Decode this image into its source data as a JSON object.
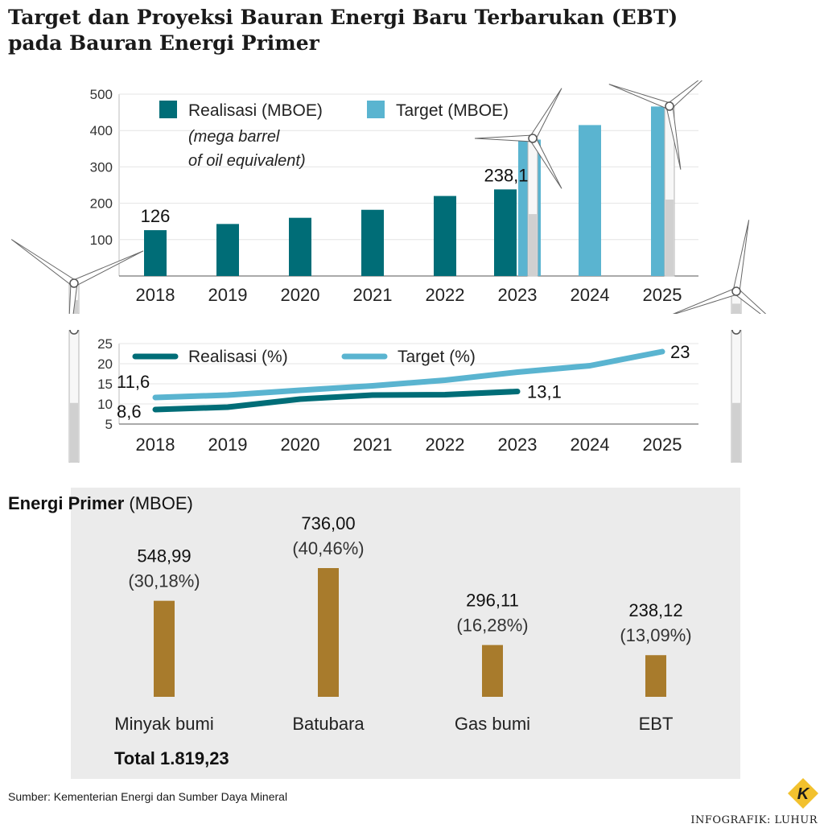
{
  "header": {
    "title_line1": "Target dan Proyeksi Bauran Energi Baru Terbarukan (EBT)",
    "title_line2": "pada Bauran Energi Primer"
  },
  "colors": {
    "realisasi": "#006d77",
    "target": "#5ab4d0",
    "energi_bar": "#a87b2c",
    "panel_bg": "#ebebeb",
    "turbine": "#d0d0d0",
    "logo_bg": "#f2c12e"
  },
  "icons": [
    "wind-turbine-icon",
    "kontan-logo-icon"
  ],
  "chart_data": [
    {
      "type": "bar",
      "categories": [
        "2018",
        "2019",
        "2020",
        "2021",
        "2022",
        "2023",
        "2024",
        "2025"
      ],
      "series": [
        {
          "name": "Realisasi (MBOE)",
          "values": [
            126,
            143,
            160,
            182,
            220,
            238.1,
            null,
            null
          ]
        },
        {
          "name": "Target (MBOE)",
          "values": [
            null,
            null,
            null,
            null,
            null,
            375,
            415,
            466
          ]
        }
      ],
      "legend": [
        "Realisasi (MBOE)",
        "Target (MBOE)"
      ],
      "legend_note_line1": "(mega barrel",
      "legend_note_line2": "of oil equivalent)",
      "data_labels": [
        {
          "category": "2018",
          "text": "126"
        },
        {
          "category": "2023",
          "text": "238,1"
        }
      ],
      "yticks": [
        "100",
        "200",
        "300",
        "400",
        "500"
      ],
      "ylim": [
        0,
        500
      ],
      "legend_position": "top-left"
    },
    {
      "type": "line",
      "x": [
        "2018",
        "2019",
        "2020",
        "2021",
        "2022",
        "2023",
        "2024",
        "2025"
      ],
      "series": [
        {
          "name": "Realisasi (%)",
          "values": [
            8.6,
            9.2,
            11.2,
            12.2,
            12.3,
            13.1,
            null,
            null
          ]
        },
        {
          "name": "Target (%)",
          "values": [
            11.6,
            12.2,
            13.4,
            14.5,
            15.9,
            17.9,
            19.5,
            23
          ]
        }
      ],
      "legend": [
        "Realisasi (%)",
        "Target (%)"
      ],
      "data_labels": [
        {
          "series": "Target (%)",
          "x": "2018",
          "text": "11,6"
        },
        {
          "series": "Realisasi (%)",
          "x": "2018",
          "text": "8,6"
        },
        {
          "series": "Realisasi (%)",
          "x": "2023",
          "text": "13,1"
        },
        {
          "series": "Target (%)",
          "x": "2025",
          "text": "23"
        }
      ],
      "yticks": [
        "5",
        "10",
        "15",
        "20",
        "25"
      ],
      "ylim": [
        5,
        25
      ],
      "legend_position": "top-left"
    },
    {
      "type": "bar",
      "title": "Energi Primer",
      "unit": "(MBOE)",
      "categories": [
        "Minyak bumi",
        "Batubara",
        "Gas bumi",
        "EBT"
      ],
      "values": [
        548.99,
        736.0,
        296.11,
        238.12
      ],
      "value_labels": [
        "548,99",
        "736,00",
        "296,11",
        "238,12"
      ],
      "percent_labels": [
        "(30,18%)",
        "(40,46%)",
        "(16,28%)",
        "(13,09%)"
      ],
      "total": "Total 1.819,23"
    }
  ],
  "source": "Sumber: Kementerian Energi dan Sumber Daya Mineral",
  "credit": "INFOGRAFIK: LUHUR",
  "logo_letter": "K"
}
